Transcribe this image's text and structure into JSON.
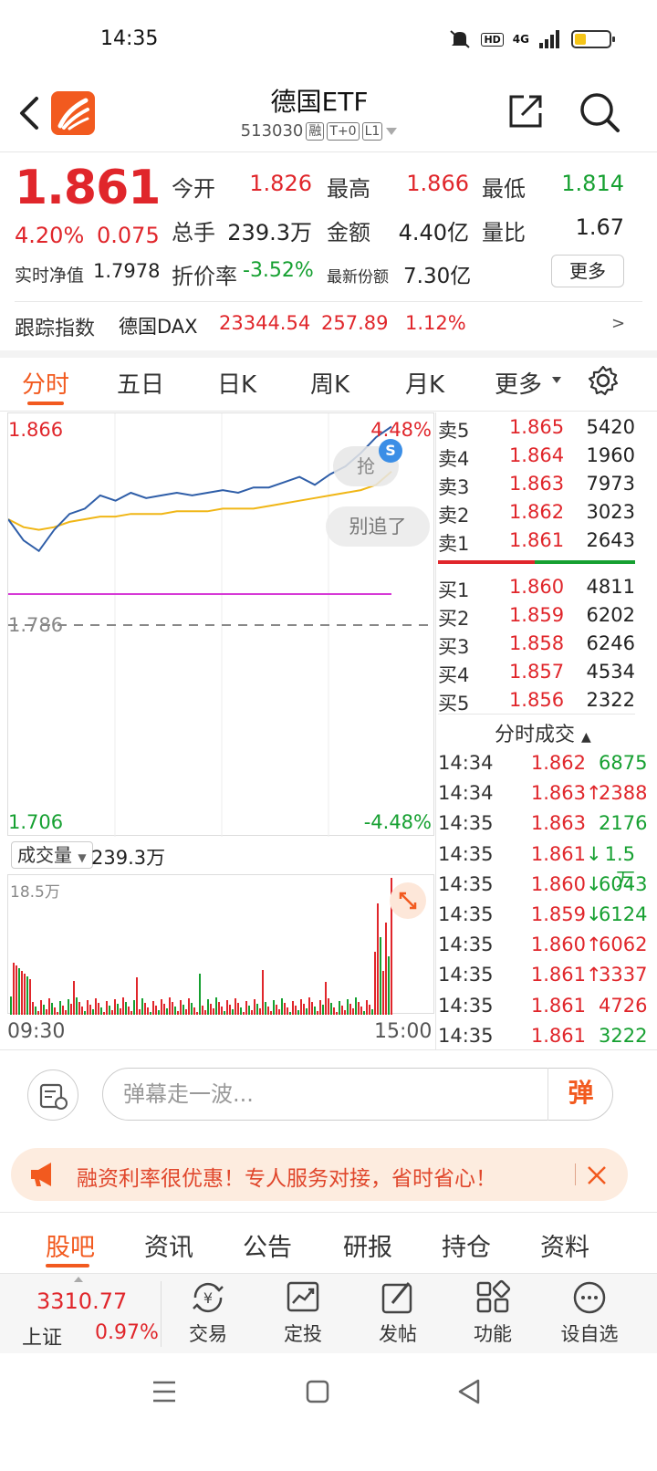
{
  "status": {
    "time": "14:35",
    "net": "4G"
  },
  "nav": {
    "title": "德国ETF",
    "code": "513030",
    "tags": [
      "融",
      "T+0",
      "L1"
    ]
  },
  "quote": {
    "price": "1.861",
    "pct": "4.20%",
    "change": "0.075",
    "open_label": "今开",
    "open": "1.826",
    "high_label": "最高",
    "high": "1.866",
    "low_label": "最低",
    "low": "1.814",
    "volume_label": "总手",
    "volume": "239.3万",
    "amount_label": "金额",
    "amount": "4.40亿",
    "ratio_label": "量比",
    "ratio": "1.67",
    "nav_label": "实时净值",
    "nav": "1.7978",
    "discount_label": "折价率",
    "discount": "-3.52%",
    "shares_label": "最新份额",
    "shares": "7.30亿",
    "more": "更多"
  },
  "index": {
    "label": "跟踪指数",
    "name": "德国DAX",
    "value": "23344.54",
    "change": "257.89",
    "pct": "1.12%",
    "arrow": ">"
  },
  "tabs": [
    "分时",
    "五日",
    "日K",
    "周K",
    "月K",
    "更多"
  ],
  "chart": {
    "top_price": "1.866",
    "top_pct": "4.48%",
    "mid_price": "1.786",
    "bottom_price": "1.706",
    "bottom_pct": "-4.48%",
    "grab_label": "抢",
    "dont_chase_label": "别追了",
    "s_badge": "S",
    "vol_label": "成交量",
    "vol_total": "239.3万",
    "vol_max": "18.5万",
    "time_start": "09:30",
    "time_end": "15:00"
  },
  "chart_data": {
    "type": "line",
    "ylim": [
      1.706,
      1.866
    ],
    "prev_close": 1.786,
    "series": [
      {
        "values": [
          1.826,
          1.818,
          1.814,
          1.822,
          1.828,
          1.83,
          1.835,
          1.833,
          1.836,
          1.834,
          1.835,
          1.836,
          1.835,
          1.836,
          1.837,
          1.836,
          1.838,
          1.838,
          1.84,
          1.842,
          1.839,
          1.843,
          1.846,
          1.851,
          1.857,
          1.861
        ]
      },
      {
        "values": [
          1.826,
          1.823,
          1.822,
          1.823,
          1.825,
          1.826,
          1.827,
          1.827,
          1.828,
          1.828,
          1.828,
          1.829,
          1.829,
          1.829,
          1.83,
          1.83,
          1.83,
          1.831,
          1.832,
          1.833,
          1.834,
          1.835,
          1.836,
          1.837,
          1.839,
          1.844
        ]
      }
    ]
  },
  "orderbook": {
    "asks": [
      {
        "label": "卖5",
        "price": "1.865",
        "vol": "5420"
      },
      {
        "label": "卖4",
        "price": "1.864",
        "vol": "1960"
      },
      {
        "label": "卖3",
        "price": "1.863",
        "vol": "7973"
      },
      {
        "label": "卖2",
        "price": "1.862",
        "vol": "3023"
      },
      {
        "label": "卖1",
        "price": "1.861",
        "vol": "2643"
      }
    ],
    "bids": [
      {
        "label": "买1",
        "price": "1.860",
        "vol": "4811"
      },
      {
        "label": "买2",
        "price": "1.859",
        "vol": "6202"
      },
      {
        "label": "买3",
        "price": "1.858",
        "vol": "6246"
      },
      {
        "label": "买4",
        "price": "1.857",
        "vol": "4534"
      },
      {
        "label": "买5",
        "price": "1.856",
        "vol": "2322"
      }
    ],
    "trades_title": "分时成交",
    "trades": [
      {
        "time": "14:34",
        "price": "1.862",
        "arrow": "",
        "vol": "6875",
        "side": "green"
      },
      {
        "time": "14:34",
        "price": "1.863",
        "arrow": "↑",
        "vol": "2388",
        "side": "red"
      },
      {
        "time": "14:35",
        "price": "1.863",
        "arrow": "",
        "vol": "2176",
        "side": "green"
      },
      {
        "time": "14:35",
        "price": "1.861",
        "arrow": "↓",
        "vol": "1.5万",
        "side": "green"
      },
      {
        "time": "14:35",
        "price": "1.860",
        "arrow": "↓",
        "vol": "6043",
        "side": "green"
      },
      {
        "time": "14:35",
        "price": "1.859",
        "arrow": "↓",
        "vol": "6124",
        "side": "green"
      },
      {
        "time": "14:35",
        "price": "1.860",
        "arrow": "↑",
        "vol": "6062",
        "side": "red"
      },
      {
        "time": "14:35",
        "price": "1.861",
        "arrow": "↑",
        "vol": "3337",
        "side": "red"
      },
      {
        "time": "14:35",
        "price": "1.861",
        "arrow": "",
        "vol": "4726",
        "side": "red"
      },
      {
        "time": "14:35",
        "price": "1.861",
        "arrow": "",
        "vol": "3222",
        "side": "green"
      }
    ]
  },
  "comment": {
    "placeholder": "弹幕走一波...",
    "btn": "弹"
  },
  "promo": {
    "text": "融资利率很优惠！专人服务对接，省时省心！"
  },
  "subtabs": [
    "股吧",
    "资讯",
    "公告",
    "研报",
    "持仓",
    "资料"
  ],
  "toolbar": {
    "index_value": "3310.77",
    "index_name": "上证",
    "index_pct": "0.97%",
    "items": [
      "交易",
      "定投",
      "发帖",
      "功能",
      "设自选"
    ]
  },
  "colors": {
    "accent": "#f25a1f",
    "up": "#e0262b",
    "down": "#16a031"
  }
}
